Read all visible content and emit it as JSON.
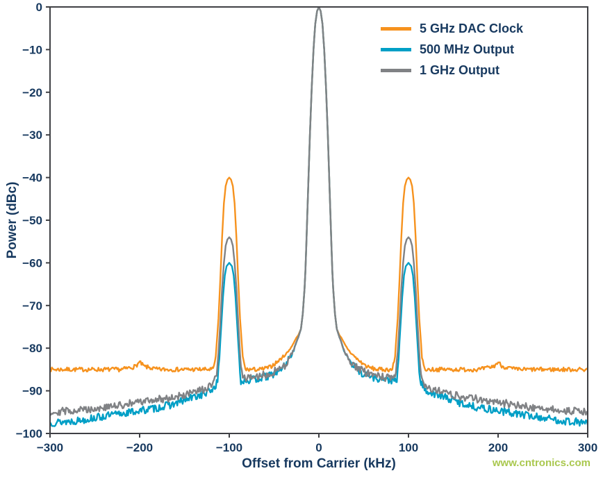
{
  "watermark": {
    "text": "www.cntronics.com",
    "color": "#aac84f"
  },
  "chart_data": {
    "type": "line",
    "title": "",
    "xlabel": "Offset from Carrier (kHz)",
    "ylabel": "Power (dBc)",
    "xlim": [
      -300,
      300
    ],
    "ylim": [
      -100,
      0
    ],
    "x_ticks": [
      -300,
      -200,
      -100,
      0,
      100,
      200,
      300
    ],
    "y_ticks": [
      0,
      -10,
      -20,
      -30,
      -40,
      -50,
      -60,
      -70,
      -80,
      -90,
      -100
    ],
    "grid": false,
    "legend_position": "top-right",
    "axis_text_color": "#17395f",
    "border_color": "#3f4044",
    "series": [
      {
        "name": "5 GHz DAC Clock",
        "color": "#F6921E",
        "noise_amp": 0.5,
        "noise_seed": 7,
        "points": [
          [
            -300,
            -85
          ],
          [
            -260,
            -85
          ],
          [
            -220,
            -85
          ],
          [
            -205,
            -84.3
          ],
          [
            -200,
            -83.3
          ],
          [
            -195,
            -84.3
          ],
          [
            -180,
            -85
          ],
          [
            -150,
            -85
          ],
          [
            -125,
            -85
          ],
          [
            -118,
            -85
          ],
          [
            -115,
            -82
          ],
          [
            -112,
            -73
          ],
          [
            -110,
            -64
          ],
          [
            -108,
            -54
          ],
          [
            -106,
            -46
          ],
          [
            -104,
            -42
          ],
          [
            -102,
            -40.5
          ],
          [
            -100,
            -40
          ],
          [
            -98,
            -40.5
          ],
          [
            -96,
            -42
          ],
          [
            -94,
            -46
          ],
          [
            -92,
            -54
          ],
          [
            -90,
            -64
          ],
          [
            -88,
            -73
          ],
          [
            -85,
            -82
          ],
          [
            -82,
            -85
          ],
          [
            -75,
            -85
          ],
          [
            -65,
            -85
          ],
          [
            -55,
            -84.5
          ],
          [
            -45,
            -83
          ],
          [
            -35,
            -81
          ],
          [
            -30,
            -79.5
          ],
          [
            -25,
            -77.5
          ],
          [
            -23,
            -77
          ],
          [
            -20,
            -75.5
          ],
          [
            -18,
            -72
          ],
          [
            -16,
            -66
          ],
          [
            -15,
            -62
          ],
          [
            -14,
            -56
          ],
          [
            -12,
            -43
          ],
          [
            -10,
            -30
          ],
          [
            -8,
            -19
          ],
          [
            -6,
            -10
          ],
          [
            -4,
            -4
          ],
          [
            -2,
            -1
          ],
          [
            0,
            0
          ],
          [
            2,
            -1
          ],
          [
            4,
            -4
          ],
          [
            6,
            -10
          ],
          [
            8,
            -19
          ],
          [
            10,
            -30
          ],
          [
            12,
            -43
          ],
          [
            14,
            -56
          ],
          [
            15,
            -62
          ],
          [
            16,
            -66
          ],
          [
            18,
            -72
          ],
          [
            20,
            -75.5
          ],
          [
            23,
            -77
          ],
          [
            25,
            -77.5
          ],
          [
            30,
            -79.5
          ],
          [
            35,
            -81
          ],
          [
            45,
            -83
          ],
          [
            55,
            -84.5
          ],
          [
            65,
            -85
          ],
          [
            75,
            -85
          ],
          [
            82,
            -85
          ],
          [
            85,
            -82
          ],
          [
            88,
            -73
          ],
          [
            90,
            -64
          ],
          [
            92,
            -54
          ],
          [
            94,
            -46
          ],
          [
            96,
            -42
          ],
          [
            98,
            -40.5
          ],
          [
            100,
            -40
          ],
          [
            102,
            -40.5
          ],
          [
            104,
            -42
          ],
          [
            106,
            -46
          ],
          [
            108,
            -54
          ],
          [
            110,
            -64
          ],
          [
            112,
            -73
          ],
          [
            115,
            -82
          ],
          [
            118,
            -85
          ],
          [
            125,
            -85
          ],
          [
            150,
            -85
          ],
          [
            180,
            -85
          ],
          [
            195,
            -84.3
          ],
          [
            200,
            -83.3
          ],
          [
            205,
            -84.3
          ],
          [
            220,
            -85
          ],
          [
            260,
            -85
          ],
          [
            300,
            -85
          ]
        ]
      },
      {
        "name": "500 MHz Output",
        "color": "#009FC6",
        "noise_amp": 0.9,
        "noise_seed": 13,
        "points": [
          [
            -300,
            -97.5
          ],
          [
            -270,
            -97
          ],
          [
            -240,
            -96
          ],
          [
            -210,
            -95
          ],
          [
            -180,
            -94
          ],
          [
            -160,
            -93
          ],
          [
            -140,
            -91.5
          ],
          [
            -125,
            -90.5
          ],
          [
            -118,
            -89.5
          ],
          [
            -113,
            -88
          ],
          [
            -111,
            -82
          ],
          [
            -109,
            -75
          ],
          [
            -107,
            -68
          ],
          [
            -105,
            -63
          ],
          [
            -103,
            -60.8
          ],
          [
            -100,
            -60
          ],
          [
            -97,
            -60.8
          ],
          [
            -95,
            -63
          ],
          [
            -93,
            -68
          ],
          [
            -91,
            -75
          ],
          [
            -89,
            -82
          ],
          [
            -87,
            -88
          ],
          [
            -83,
            -87.5
          ],
          [
            -75,
            -87.5
          ],
          [
            -65,
            -87
          ],
          [
            -55,
            -86.5
          ],
          [
            -45,
            -85.5
          ],
          [
            -38,
            -84
          ],
          [
            -32,
            -82
          ],
          [
            -28,
            -80.5
          ],
          [
            -25,
            -78.5
          ],
          [
            -23,
            -77.5
          ],
          [
            -20,
            -75.5
          ],
          [
            -18,
            -72
          ],
          [
            -16,
            -66
          ],
          [
            -15,
            -62
          ],
          [
            -14,
            -56
          ],
          [
            -12,
            -43
          ],
          [
            -10,
            -30
          ],
          [
            -8,
            -19
          ],
          [
            -6,
            -10
          ],
          [
            -4,
            -4
          ],
          [
            -2,
            -1
          ],
          [
            0,
            0
          ],
          [
            2,
            -1
          ],
          [
            4,
            -4
          ],
          [
            6,
            -10
          ],
          [
            8,
            -19
          ],
          [
            10,
            -30
          ],
          [
            12,
            -43
          ],
          [
            14,
            -56
          ],
          [
            15,
            -62
          ],
          [
            16,
            -66
          ],
          [
            18,
            -72
          ],
          [
            20,
            -75.5
          ],
          [
            23,
            -77.5
          ],
          [
            25,
            -78.5
          ],
          [
            28,
            -80.5
          ],
          [
            32,
            -82
          ],
          [
            38,
            -84
          ],
          [
            45,
            -85.5
          ],
          [
            55,
            -86.5
          ],
          [
            65,
            -87
          ],
          [
            75,
            -87.5
          ],
          [
            83,
            -87.5
          ],
          [
            87,
            -88
          ],
          [
            89,
            -82
          ],
          [
            91,
            -75
          ],
          [
            93,
            -68
          ],
          [
            95,
            -63
          ],
          [
            97,
            -60.8
          ],
          [
            100,
            -60
          ],
          [
            103,
            -60.8
          ],
          [
            105,
            -63
          ],
          [
            107,
            -68
          ],
          [
            109,
            -75
          ],
          [
            111,
            -82
          ],
          [
            113,
            -88
          ],
          [
            118,
            -89.5
          ],
          [
            125,
            -90.5
          ],
          [
            140,
            -91.5
          ],
          [
            160,
            -93
          ],
          [
            180,
            -94
          ],
          [
            210,
            -95
          ],
          [
            240,
            -96
          ],
          [
            270,
            -97
          ],
          [
            300,
            -97.5
          ]
        ]
      },
      {
        "name": "1 GHz Output",
        "color": "#808285",
        "noise_amp": 0.9,
        "noise_seed": 29,
        "points": [
          [
            -300,
            -95
          ],
          [
            -270,
            -94.5
          ],
          [
            -240,
            -94
          ],
          [
            -210,
            -93
          ],
          [
            -180,
            -92
          ],
          [
            -160,
            -91.5
          ],
          [
            -140,
            -90.5
          ],
          [
            -125,
            -89.5
          ],
          [
            -118,
            -88.5
          ],
          [
            -114,
            -86
          ],
          [
            -112,
            -81
          ],
          [
            -110,
            -74
          ],
          [
            -108,
            -66
          ],
          [
            -106,
            -60
          ],
          [
            -104,
            -56
          ],
          [
            -102,
            -54.5
          ],
          [
            -100,
            -54
          ],
          [
            -98,
            -54.5
          ],
          [
            -96,
            -56
          ],
          [
            -94,
            -60
          ],
          [
            -92,
            -66
          ],
          [
            -90,
            -74
          ],
          [
            -88,
            -81
          ],
          [
            -86,
            -86
          ],
          [
            -83,
            -87
          ],
          [
            -75,
            -87
          ],
          [
            -65,
            -86.5
          ],
          [
            -55,
            -86
          ],
          [
            -45,
            -85
          ],
          [
            -38,
            -84
          ],
          [
            -32,
            -82
          ],
          [
            -28,
            -80.5
          ],
          [
            -25,
            -78.5
          ],
          [
            -23,
            -77.5
          ],
          [
            -20,
            -75.5
          ],
          [
            -18,
            -72
          ],
          [
            -16,
            -66
          ],
          [
            -15,
            -62
          ],
          [
            -14,
            -56
          ],
          [
            -12,
            -43
          ],
          [
            -10,
            -30
          ],
          [
            -8,
            -19
          ],
          [
            -6,
            -10
          ],
          [
            -4,
            -4
          ],
          [
            -2,
            -1
          ],
          [
            0,
            0
          ],
          [
            2,
            -1
          ],
          [
            4,
            -4
          ],
          [
            6,
            -10
          ],
          [
            8,
            -19
          ],
          [
            10,
            -30
          ],
          [
            12,
            -43
          ],
          [
            14,
            -56
          ],
          [
            15,
            -62
          ],
          [
            16,
            -66
          ],
          [
            18,
            -72
          ],
          [
            20,
            -75.5
          ],
          [
            23,
            -77.5
          ],
          [
            25,
            -78.5
          ],
          [
            28,
            -80.5
          ],
          [
            32,
            -82
          ],
          [
            38,
            -84
          ],
          [
            45,
            -85
          ],
          [
            55,
            -86
          ],
          [
            65,
            -86.5
          ],
          [
            75,
            -87
          ],
          [
            83,
            -87
          ],
          [
            86,
            -86
          ],
          [
            88,
            -81
          ],
          [
            90,
            -74
          ],
          [
            92,
            -66
          ],
          [
            94,
            -60
          ],
          [
            96,
            -56
          ],
          [
            98,
            -54.5
          ],
          [
            100,
            -54
          ],
          [
            102,
            -54.5
          ],
          [
            104,
            -56
          ],
          [
            106,
            -60
          ],
          [
            108,
            -66
          ],
          [
            110,
            -74
          ],
          [
            112,
            -81
          ],
          [
            114,
            -86
          ],
          [
            118,
            -88.5
          ],
          [
            125,
            -89.5
          ],
          [
            140,
            -90.5
          ],
          [
            160,
            -91.5
          ],
          [
            180,
            -92
          ],
          [
            210,
            -93
          ],
          [
            240,
            -94
          ],
          [
            270,
            -94.5
          ],
          [
            300,
            -95
          ]
        ]
      }
    ]
  }
}
